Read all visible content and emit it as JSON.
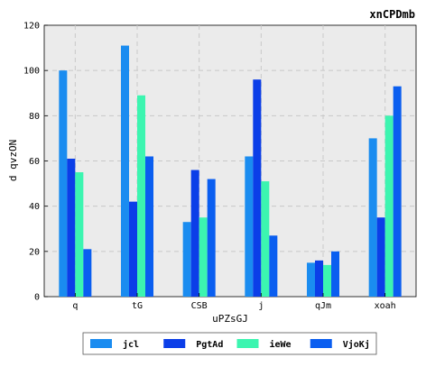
{
  "chart_data": {
    "type": "bar",
    "title": "xnCPDmb",
    "xlabel": "uPZsGJ",
    "ylabel": "d qvzON",
    "categories": [
      "q",
      "tG",
      "CSB",
      "j",
      "qJm",
      "xoah"
    ],
    "series": [
      {
        "name": "jcl",
        "color": "#1a8cf0",
        "values": [
          100,
          111,
          33,
          62,
          15,
          70
        ]
      },
      {
        "name": "PgtAd",
        "color": "#0b3ee8",
        "values": [
          61,
          42,
          56,
          96,
          16,
          35
        ]
      },
      {
        "name": "ieWe",
        "color": "#3cf5b0",
        "values": [
          55,
          89,
          35,
          51,
          14,
          80
        ]
      },
      {
        "name": "VjoKj",
        "color": "#0a5ef0",
        "values": [
          21,
          62,
          52,
          27,
          20,
          93
        ]
      }
    ],
    "ylim": [
      0,
      120
    ],
    "yticks": [
      0,
      20,
      40,
      60,
      80,
      100,
      120
    ],
    "grid": true,
    "legend_position": "bottom-center",
    "plot_background": "#ebebeb"
  }
}
